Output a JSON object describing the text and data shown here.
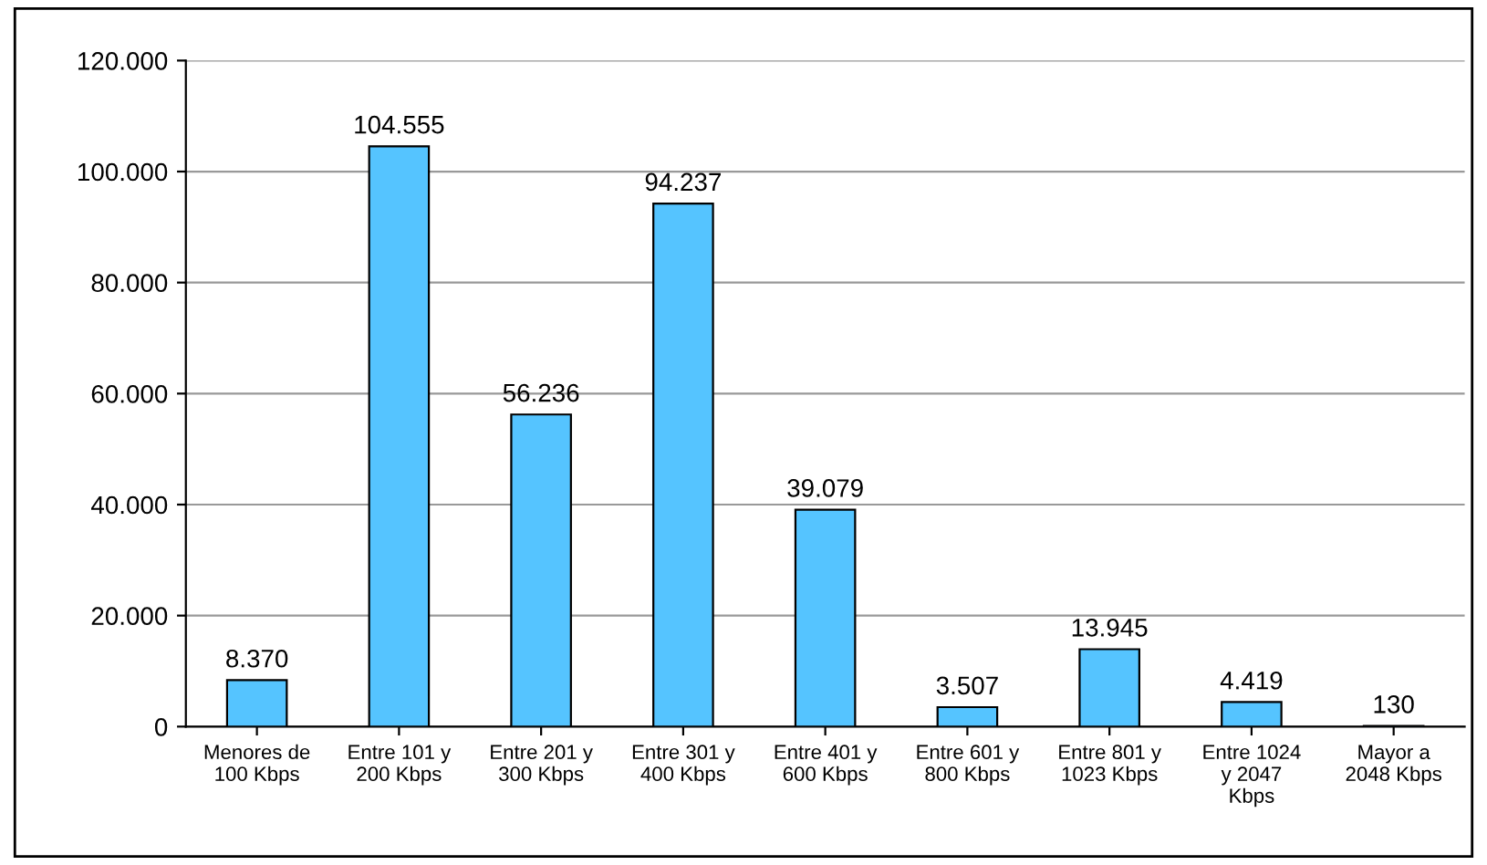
{
  "chart_data": {
    "type": "bar",
    "categories": [
      "Menores de\n100 Kbps",
      "Entre 101 y\n200 Kbps",
      "Entre 201 y\n300 Kbps",
      "Entre 301 y\n400 Kbps",
      "Entre 401 y\n600 Kbps",
      "Entre 601 y\n800 Kbps",
      "Entre 801 y\n1023 Kbps",
      "Entre 1024\ny 2047\nKbps",
      "Mayor a\n2048 Kbps"
    ],
    "values": [
      8370,
      104555,
      56236,
      94237,
      39079,
      3507,
      13945,
      4419,
      130
    ],
    "value_labels": [
      "8.370",
      "104.555",
      "56.236",
      "94.237",
      "39.079",
      "3.507",
      "13.945",
      "4.419",
      "130"
    ],
    "color": "#55c4ff",
    "ylim": [
      0,
      120000
    ],
    "yticks": [
      {
        "value": 0,
        "label": "0"
      },
      {
        "value": 20000,
        "label": "20.000"
      },
      {
        "value": 40000,
        "label": "40.000"
      },
      {
        "value": 60000,
        "label": "60.000"
      },
      {
        "value": 80000,
        "label": "80.000"
      },
      {
        "value": 100000,
        "label": "100.000"
      },
      {
        "value": 120000,
        "label": "120.000"
      }
    ],
    "grid": "y",
    "legend": false
  }
}
